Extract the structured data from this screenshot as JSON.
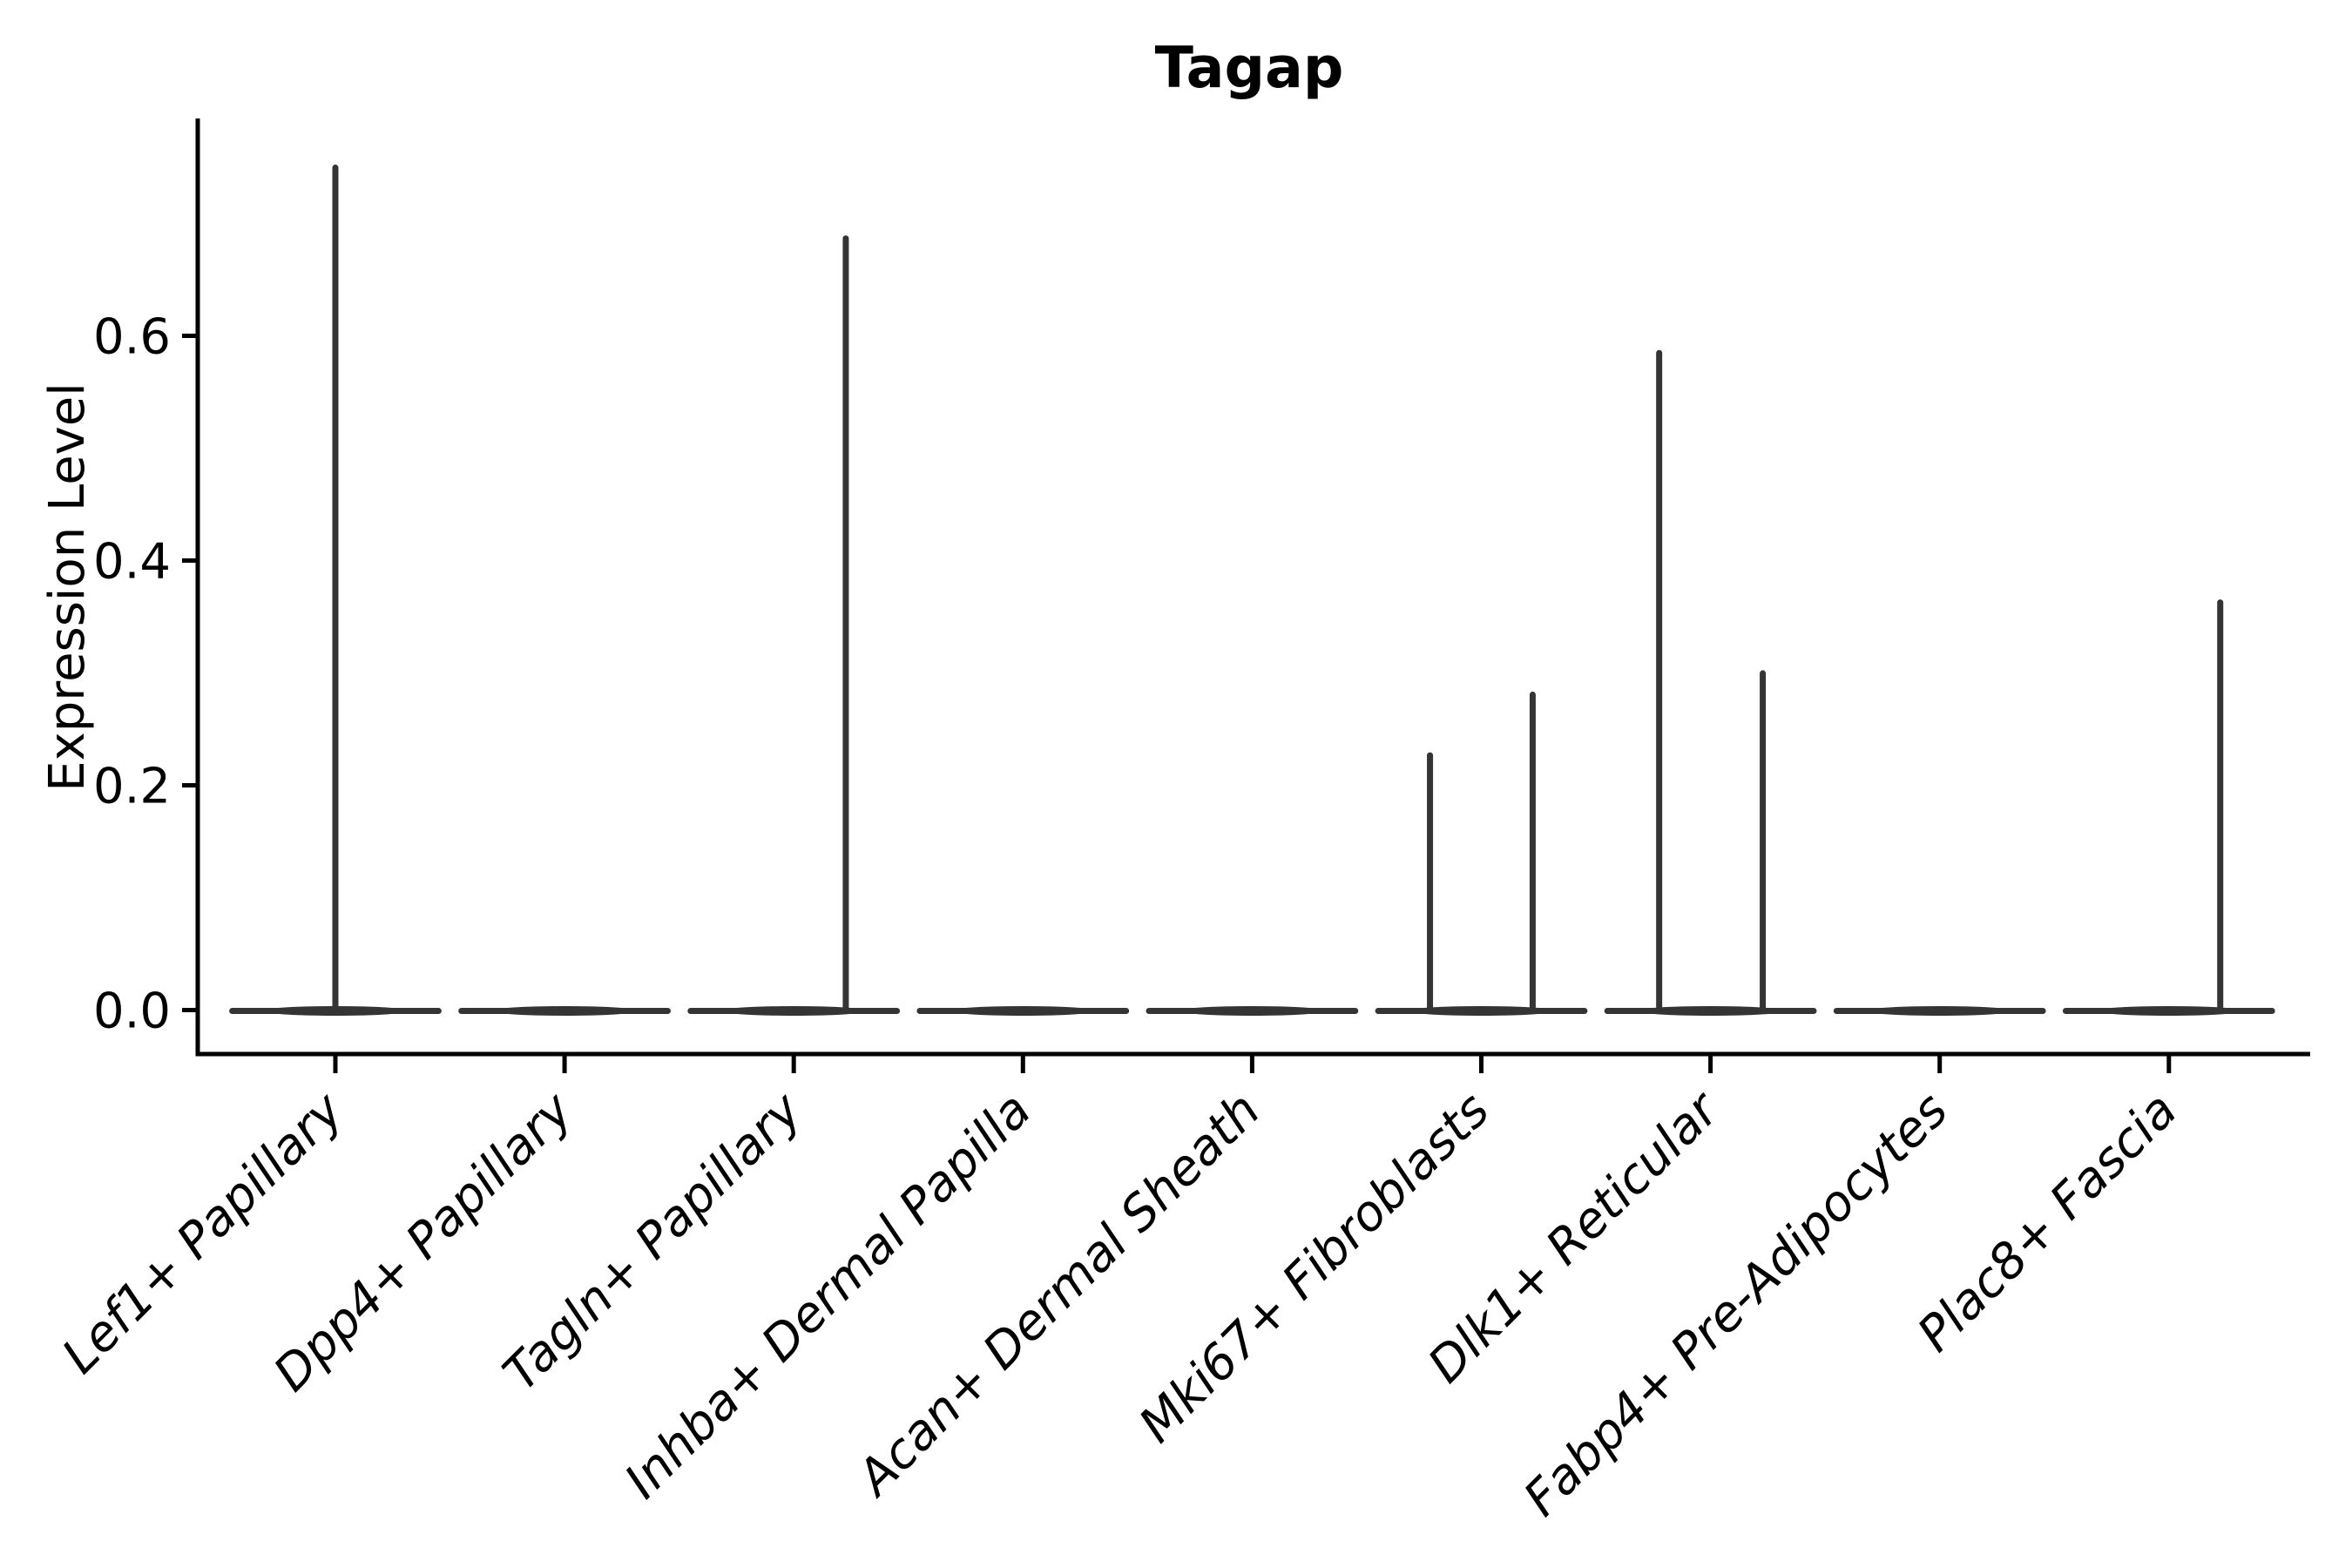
{
  "chart_data": {
    "type": "violin",
    "title": "Tagap",
    "ylabel": "Expression Level",
    "xlabel": "",
    "grid": false,
    "legend": null,
    "ylim": [
      -0.04,
      0.79
    ],
    "yticks": [
      {
        "label": "0.0",
        "value": 0.0
      },
      {
        "label": "0.2",
        "value": 0.2
      },
      {
        "label": "0.4",
        "value": 0.4
      },
      {
        "label": "0.6",
        "value": 0.6
      }
    ],
    "categories": [
      "Lef1+ Papillary",
      "Dpp4+ Papillary",
      "Tagln+ Papillary",
      "Inhba+ Dermal Papilla",
      "Acan+ Dermal Sheath",
      "Mki67+ Fibroblasts",
      "Dlk1+ Reticular",
      "Fabp4+ Pre-Adipocytes",
      "Plac8+ Fascia"
    ],
    "violins": [
      {
        "category": "Lef1+ Papillary",
        "base_at_zero": true,
        "max_value": 0.75,
        "tails": [
          {
            "offset": 0.0,
            "value": 0.752
          }
        ]
      },
      {
        "category": "Dpp4+ Papillary",
        "base_at_zero": true,
        "max_value": 0.0,
        "tails": []
      },
      {
        "category": "Tagln+ Papillary",
        "base_at_zero": true,
        "max_value": 0.69,
        "tails": [
          {
            "offset": 0.227,
            "value": 0.689
          }
        ]
      },
      {
        "category": "Inhba+ Dermal Papilla",
        "base_at_zero": true,
        "max_value": 0.0,
        "tails": []
      },
      {
        "category": "Acan+ Dermal Sheath",
        "base_at_zero": true,
        "max_value": 0.0,
        "tails": []
      },
      {
        "category": "Mki67+ Fibroblasts",
        "base_at_zero": true,
        "max_value": 0.28,
        "tails": [
          {
            "offset": -0.224,
            "value": 0.229
          },
          {
            "offset": 0.224,
            "value": 0.283
          }
        ]
      },
      {
        "category": "Dlk1+ Reticular",
        "base_at_zero": true,
        "max_value": 0.59,
        "tails": [
          {
            "offset": -0.224,
            "value": 0.587
          },
          {
            "offset": 0.228,
            "value": 0.302
          }
        ]
      },
      {
        "category": "Fabp4+ Pre-Adipocytes",
        "base_at_zero": true,
        "max_value": 0.0,
        "tails": []
      },
      {
        "category": "Plac8+ Fascia",
        "base_at_zero": true,
        "max_value": 0.365,
        "tails": [
          {
            "offset": 0.224,
            "value": 0.365
          }
        ]
      }
    ],
    "base_halfwidth_fraction": 0.45,
    "colors": {
      "violin_stroke": "#343434",
      "axis": "#000000",
      "text": "#000000",
      "background": "#ffffff"
    }
  }
}
